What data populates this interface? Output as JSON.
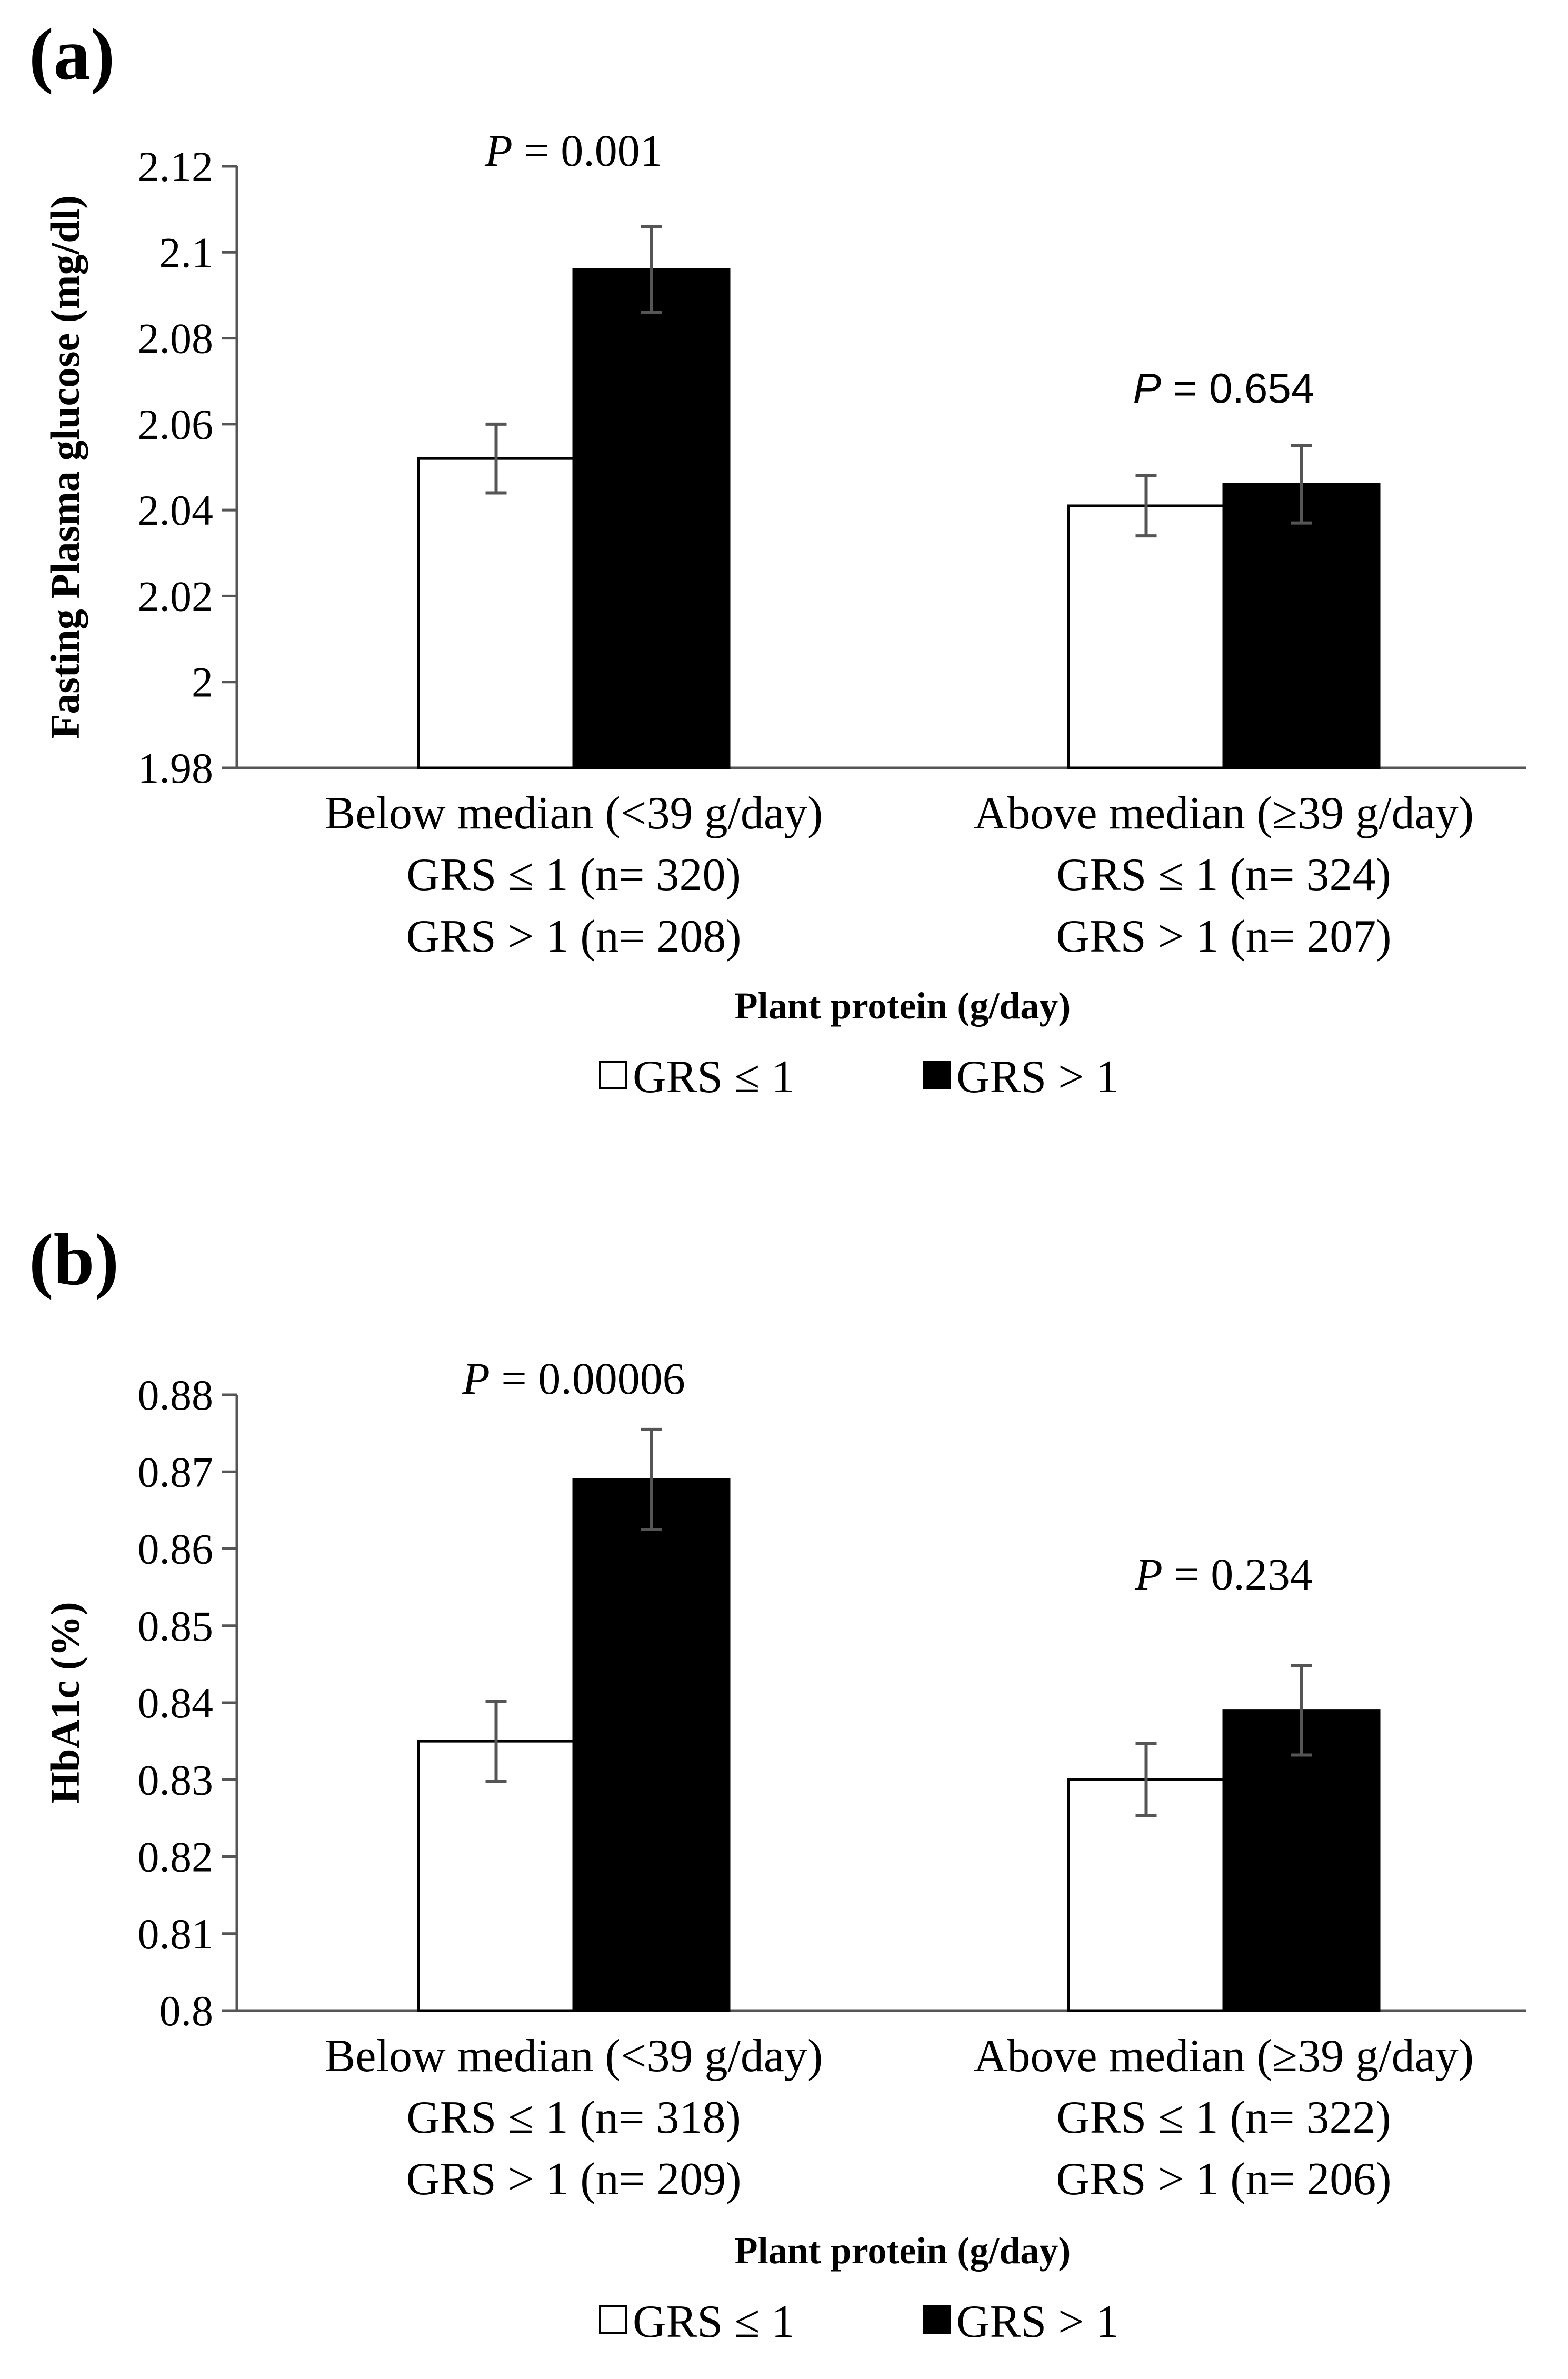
{
  "chart_data": [
    {
      "type": "bar",
      "panel_label": "(a)",
      "ylabel": "Fasting Plasma glucose (mg/dl)",
      "xlabel": "Plant protein (g/day)",
      "ylim": [
        1.98,
        2.12
      ],
      "y_ticks": [
        "1.98",
        "2",
        "2.02",
        "2.04",
        "2.06",
        "2.08",
        "2.1",
        "2.12"
      ],
      "categories": [
        {
          "lines": [
            "Below median (<39 g/day)",
            "GRS ≤ 1 (n= 320)",
            "GRS > 1 (n= 208)"
          ]
        },
        {
          "lines": [
            "Above median (≥39 g/day)",
            "GRS ≤ 1 (n= 324)",
            "GRS > 1 (n= 207)"
          ]
        }
      ],
      "series": [
        {
          "name": "GRS ≤ 1",
          "fill": "#ffffff",
          "values": [
            2.052,
            2.041
          ],
          "errors": [
            0.008,
            0.007
          ]
        },
        {
          "name": "GRS > 1",
          "fill": "#000000",
          "values": [
            2.096,
            2.046
          ],
          "errors": [
            0.01,
            0.009
          ]
        }
      ],
      "annotations": [
        {
          "italic": "P",
          "text": " = 0.001",
          "group": 0,
          "style": "serif"
        },
        {
          "italic": "P",
          "text": " = 0.654",
          "group": 1,
          "style": "sans"
        }
      ],
      "legend": [
        "GRS ≤ 1",
        "GRS > 1"
      ],
      "grid": false
    },
    {
      "type": "bar",
      "panel_label": "(b)",
      "ylabel": "HbA1c (%)",
      "xlabel": "Plant protein (g/day)",
      "ylim": [
        0.8,
        0.88
      ],
      "y_ticks": [
        "0.8",
        "0.81",
        "0.82",
        "0.83",
        "0.84",
        "0.85",
        "0.86",
        "0.87",
        "0.88"
      ],
      "categories": [
        {
          "lines": [
            "Below median (<39 g/day)",
            "GRS ≤ 1 (n= 318)",
            "GRS > 1 (n= 209)"
          ]
        },
        {
          "lines": [
            "Above median (≥39 g/day)",
            "GRS ≤ 1 (n= 322)",
            "GRS > 1 (n= 206)"
          ]
        }
      ],
      "series": [
        {
          "name": "GRS ≤ 1",
          "fill": "#ffffff",
          "values": [
            0.835,
            0.83
          ],
          "errors": [
            0.0052,
            0.0047
          ]
        },
        {
          "name": "GRS > 1",
          "fill": "#000000",
          "values": [
            0.869,
            0.839
          ],
          "errors": [
            0.0065,
            0.0058
          ]
        }
      ],
      "annotations": [
        {
          "italic": "P",
          "text": " = 0.00006",
          "group": 0,
          "style": "serif"
        },
        {
          "italic": "P",
          "text": " = 0.234",
          "group": 1,
          "style": "serif"
        }
      ],
      "legend": [
        "GRS ≤ 1",
        "GRS > 1"
      ],
      "grid": false
    }
  ],
  "colors": {
    "axis": "#555555",
    "error_bar": "#555555",
    "text": "#000000"
  }
}
